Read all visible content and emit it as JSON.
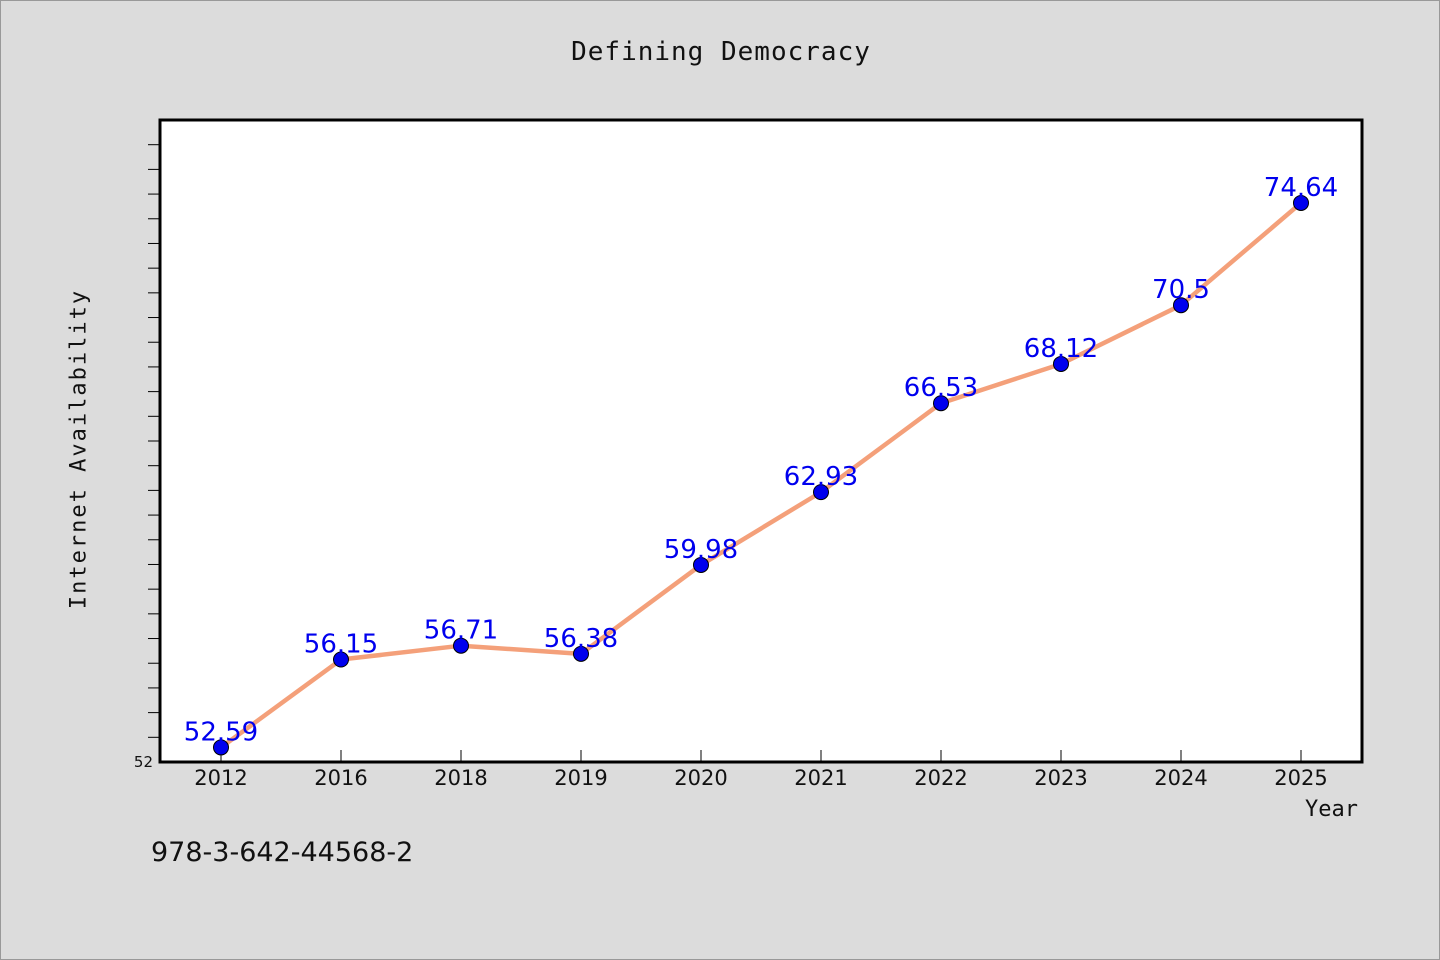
{
  "chart_data": {
    "type": "line",
    "title": "Defining Democracy",
    "xlabel": "Year",
    "ylabel": "Internet Availability",
    "categories": [
      "2012",
      "2016",
      "2018",
      "2019",
      "2020",
      "2021",
      "2022",
      "2023",
      "2024",
      "2025"
    ],
    "series": [
      {
        "values": [
          52.59,
          56.15,
          56.71,
          56.38,
          59.98,
          62.93,
          66.53,
          68.12,
          70.5,
          74.64
        ],
        "data_labels": [
          "52.59",
          "56.15",
          "56.71",
          "56.38",
          "59.98",
          "62.93",
          "66.53",
          "68.12",
          "70.5",
          "74.64"
        ]
      }
    ],
    "y_tick_labels": [
      "52"
    ],
    "ylim": [
      52,
      78
    ],
    "grid": false,
    "line_color": "#f4a07a",
    "marker_color": "#0000ee",
    "label_color": "#0000ee"
  },
  "footer": {
    "code": "978-3-642-44568-2"
  }
}
